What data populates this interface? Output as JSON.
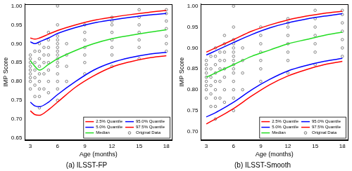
{
  "chart_data": [
    {
      "type": "line",
      "title": "(a) ILSST-FP",
      "x_label": "Age (months)",
      "y_label": "IMP Score",
      "xlim": [
        2.4,
        18.6
      ],
      "xticks": [
        3,
        6,
        9,
        12,
        15,
        18
      ],
      "ylim": [
        0.645,
        1.005
      ],
      "yticks": [
        0.65,
        {
          "value": 0.7,
          "label": "0.70"
        },
        0.75,
        {
          "value": 0.8,
          "label": "0.80"
        },
        0.85,
        {
          "value": 0.9,
          "label": "0.90"
        },
        0.95,
        {
          "value": 1,
          "label": "1.00"
        }
      ],
      "grid": false,
      "legend": "bottom right",
      "x": [
        3,
        3.5,
        4,
        5,
        6,
        8,
        10,
        12,
        14,
        16,
        18
      ],
      "series": [
        {
          "name": "2.5% Quantile",
          "color": "#ff0000",
          "line_style": "solid",
          "values": [
            0.722,
            0.712,
            0.71,
            0.725,
            0.745,
            0.785,
            0.815,
            0.838,
            0.852,
            0.862,
            0.868
          ]
        },
        {
          "name": "95.0% Quantile",
          "color": "#0000ff",
          "line_style": "solid",
          "values": [
            0.905,
            0.9,
            0.905,
            0.915,
            0.927,
            0.943,
            0.955,
            0.963,
            0.97,
            0.976,
            0.98
          ]
        },
        {
          "name": "5.0% Quantile",
          "color": "#0000ff",
          "line_style": "solid",
          "values": [
            0.745,
            0.735,
            0.733,
            0.745,
            0.765,
            0.8,
            0.83,
            0.85,
            0.863,
            0.872,
            0.877
          ]
        },
        {
          "name": "97.5% Quantile",
          "color": "#ff0000",
          "line_style": "solid",
          "values": [
            0.915,
            0.912,
            0.915,
            0.925,
            0.935,
            0.95,
            0.962,
            0.97,
            0.977,
            0.983,
            0.988
          ]
        },
        {
          "name": "Median",
          "color": "#22dd22",
          "line_style": "solid",
          "values": [
            0.855,
            0.84,
            0.83,
            0.845,
            0.86,
            0.882,
            0.9,
            0.913,
            0.922,
            0.93,
            0.937
          ]
        },
        {
          "name": "Original Data",
          "type": "scatter",
          "marker": "circle",
          "color": "#555555",
          "x": [
            3,
            3,
            3,
            3,
            3,
            3,
            3,
            3,
            3,
            3.5,
            3.5,
            3.5,
            3.5,
            3.5,
            3.5,
            4,
            4,
            4,
            4,
            4,
            4,
            4,
            4,
            4,
            4.5,
            4.5,
            4.5,
            4.5,
            4.5,
            5,
            5,
            5,
            5,
            5,
            5,
            5,
            5,
            6,
            6,
            6,
            6,
            6,
            6,
            6,
            6,
            6,
            6,
            6,
            6,
            6,
            6,
            6,
            7,
            7,
            7,
            7,
            9,
            9,
            9,
            9,
            9,
            9,
            9,
            12,
            12,
            12,
            12,
            12,
            12,
            12,
            12,
            15,
            15,
            15,
            15,
            15,
            15,
            15,
            18,
            18,
            18,
            18,
            18,
            18,
            18
          ],
          "values": [
            0.78,
            0.8,
            0.81,
            0.82,
            0.83,
            0.84,
            0.85,
            0.86,
            0.87,
            0.76,
            0.79,
            0.81,
            0.83,
            0.85,
            0.88,
            0.73,
            0.76,
            0.78,
            0.8,
            0.82,
            0.84,
            0.86,
            0.88,
            0.9,
            0.78,
            0.82,
            0.85,
            0.87,
            0.89,
            0.77,
            0.8,
            0.83,
            0.85,
            0.87,
            0.89,
            0.91,
            0.93,
            0.75,
            0.78,
            0.8,
            0.82,
            0.84,
            0.85,
            0.86,
            0.87,
            0.88,
            0.89,
            0.9,
            0.91,
            0.92,
            0.95,
            1.0,
            0.8,
            0.84,
            0.87,
            0.9,
            0.82,
            0.85,
            0.87,
            0.89,
            0.91,
            0.93,
            0.95,
            0.84,
            0.87,
            0.89,
            0.91,
            0.93,
            0.95,
            0.96,
            0.97,
            0.86,
            0.89,
            0.91,
            0.93,
            0.95,
            0.97,
            0.99,
            0.88,
            0.9,
            0.92,
            0.94,
            0.96,
            0.98,
            0.99
          ]
        }
      ]
    },
    {
      "type": "line",
      "title": "(b) ILSST-Smooth",
      "x_label": "Age (months)",
      "y_label": "IMP Score",
      "xlim": [
        2.4,
        18.6
      ],
      "xticks": [
        3,
        6,
        9,
        12,
        15,
        18
      ],
      "ylim": [
        0.68,
        1.005
      ],
      "yticks": [
        {
          "value": 0.7,
          "label": "0.70"
        },
        0.75,
        {
          "value": 0.8,
          "label": "0.80"
        },
        0.85,
        {
          "value": 0.9,
          "label": "0.90"
        },
        0.95,
        {
          "value": 1,
          "label": "1.00"
        }
      ],
      "grid": false,
      "legend": "bottom right",
      "x": [
        3,
        4,
        5,
        6,
        8,
        10,
        12,
        14,
        16,
        18
      ],
      "series": [
        {
          "name": "2.5% Quantile",
          "color": "#ff0000",
          "line_style": "solid",
          "values": [
            0.718,
            0.73,
            0.742,
            0.755,
            0.785,
            0.812,
            0.833,
            0.848,
            0.86,
            0.868
          ]
        },
        {
          "name": "95.0% Quantile",
          "color": "#0000ff",
          "line_style": "solid",
          "values": [
            0.883,
            0.893,
            0.903,
            0.913,
            0.932,
            0.948,
            0.96,
            0.969,
            0.976,
            0.982
          ]
        },
        {
          "name": "5.0% Quantile",
          "color": "#0000ff",
          "line_style": "solid",
          "values": [
            0.735,
            0.745,
            0.757,
            0.77,
            0.8,
            0.825,
            0.845,
            0.858,
            0.868,
            0.875
          ]
        },
        {
          "name": "97.5% Quantile",
          "color": "#ff0000",
          "line_style": "solid",
          "values": [
            0.89,
            0.9,
            0.91,
            0.92,
            0.94,
            0.955,
            0.967,
            0.976,
            0.983,
            0.988
          ]
        },
        {
          "name": "Median",
          "color": "#22dd22",
          "line_style": "solid",
          "values": [
            0.83,
            0.84,
            0.85,
            0.86,
            0.88,
            0.895,
            0.91,
            0.92,
            0.93,
            0.938
          ]
        },
        {
          "name": "Original Data",
          "type": "scatter",
          "marker": "circle",
          "color": "#555555",
          "x": [
            3,
            3,
            3,
            3,
            3,
            3,
            3,
            3,
            3,
            3.5,
            3.5,
            3.5,
            3.5,
            3.5,
            3.5,
            4,
            4,
            4,
            4,
            4,
            4,
            4,
            4,
            4,
            4.5,
            4.5,
            4.5,
            4.5,
            4.5,
            5,
            5,
            5,
            5,
            5,
            5,
            5,
            5,
            6,
            6,
            6,
            6,
            6,
            6,
            6,
            6,
            6,
            6,
            6,
            6,
            6,
            6,
            6,
            7,
            7,
            7,
            7,
            9,
            9,
            9,
            9,
            9,
            9,
            9,
            12,
            12,
            12,
            12,
            12,
            12,
            12,
            12,
            15,
            15,
            15,
            15,
            15,
            15,
            15,
            18,
            18,
            18,
            18,
            18,
            18,
            18
          ],
          "values": [
            0.78,
            0.8,
            0.81,
            0.82,
            0.83,
            0.84,
            0.85,
            0.86,
            0.87,
            0.76,
            0.79,
            0.81,
            0.83,
            0.85,
            0.88,
            0.73,
            0.76,
            0.78,
            0.8,
            0.82,
            0.84,
            0.86,
            0.88,
            0.9,
            0.78,
            0.82,
            0.85,
            0.87,
            0.89,
            0.77,
            0.8,
            0.83,
            0.85,
            0.87,
            0.89,
            0.91,
            0.93,
            0.75,
            0.78,
            0.8,
            0.82,
            0.84,
            0.85,
            0.86,
            0.87,
            0.88,
            0.89,
            0.9,
            0.91,
            0.92,
            0.95,
            1.0,
            0.8,
            0.84,
            0.87,
            0.9,
            0.82,
            0.85,
            0.87,
            0.89,
            0.91,
            0.93,
            0.95,
            0.84,
            0.87,
            0.89,
            0.91,
            0.93,
            0.95,
            0.96,
            0.97,
            0.86,
            0.89,
            0.91,
            0.93,
            0.95,
            0.97,
            0.99,
            0.88,
            0.9,
            0.92,
            0.94,
            0.96,
            0.98,
            0.99
          ]
        }
      ]
    }
  ]
}
